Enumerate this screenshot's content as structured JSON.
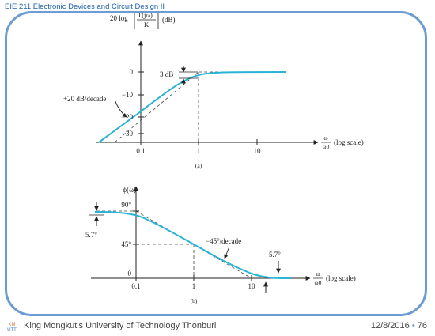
{
  "header": {
    "title": "EIE 211 Electronic Devices and Circuit Design II"
  },
  "colors": {
    "curve": "#2bb3d6",
    "frame": "#6d9bd3",
    "title": "#1f5fa8",
    "axis": "#222222"
  },
  "plot_a": {
    "ylabel": "20 log |T(jω)/K| (dB)",
    "ylabel_parts": {
      "prefix": "20 log",
      "numerator": "T(jω)",
      "denominator": "K",
      "unit": "(dB)"
    },
    "y_ticks": [
      "0",
      "−10",
      "−20",
      "−30"
    ],
    "x_ticks": [
      "0.1",
      "1",
      "10"
    ],
    "xlabel": "(log scale)",
    "xlabel_fraction": {
      "numerator": "ω",
      "denominator": "ω0"
    },
    "annotations": {
      "three_db": "3 dB",
      "slope": "+20 dB/decade"
    },
    "caption": "(a)"
  },
  "plot_b": {
    "ylabel": "ϕ(ω)",
    "y_ticks": [
      "90°",
      "45°",
      "0"
    ],
    "x_ticks": [
      "0.1",
      "1",
      "10"
    ],
    "xlabel": "(log scale)",
    "xlabel_fraction": {
      "numerator": "ω",
      "denominator": "ω0"
    },
    "annotations": {
      "left_offset": "5.7°",
      "slope": "−45°/decade",
      "right_offset": "5.7°"
    },
    "caption": "(b)"
  },
  "footer": {
    "university": "King Mongkut’s University of Technology Thonburi",
    "date": "12/8/2016",
    "bullet": "•",
    "page": "76",
    "logo_text": "KMUTT"
  }
}
